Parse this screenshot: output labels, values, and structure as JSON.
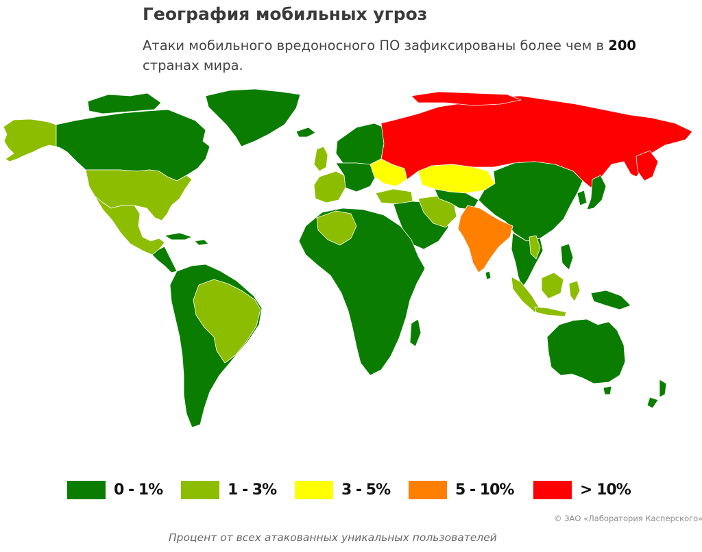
{
  "title": "География мобильных угроз",
  "subtitle": {
    "before": "Атаки мобильного вредоносного ПО зафиксированы более чем в ",
    "number": "200",
    "after": " странах мира."
  },
  "legend": [
    {
      "label": "0 - 1%",
      "color": "#0a7d00"
    },
    {
      "label": "1 - 3%",
      "color": "#8cbd00"
    },
    {
      "label": "3 - 5%",
      "color": "#ffff00"
    },
    {
      "label": "5 - 10%",
      "color": "#ff8000"
    },
    {
      "label": "> 10%",
      "color": "#ff0000"
    }
  ],
  "regions": {
    "russia": {
      "category": "> 10%",
      "color": "#ff0000"
    },
    "india": {
      "category": "5 - 10%",
      "color": "#ff8000"
    },
    "kazakhstan": {
      "category": "3 - 5%",
      "color": "#ffff00"
    },
    "ukraine": {
      "category": "3 - 5%",
      "color": "#ffff00"
    },
    "usa": {
      "category": "1 - 3%",
      "color": "#8cbd00"
    },
    "brazil": {
      "category": "1 - 3%",
      "color": "#8cbd00"
    },
    "algeria": {
      "category": "1 - 3%",
      "color": "#8cbd00"
    },
    "indonesia": {
      "category": "1 - 3%",
      "color": "#8cbd00"
    },
    "canada": {
      "category": "0 - 1%",
      "color": "#0a7d00"
    },
    "china": {
      "category": "0 - 1%",
      "color": "#0a7d00"
    },
    "australia": {
      "category": "0 - 1%",
      "color": "#0a7d00"
    }
  },
  "copyright": "© ЗАО «Лаборатория Касперского»",
  "caption": "Процент от всех атакованных уникальных пользователей"
}
